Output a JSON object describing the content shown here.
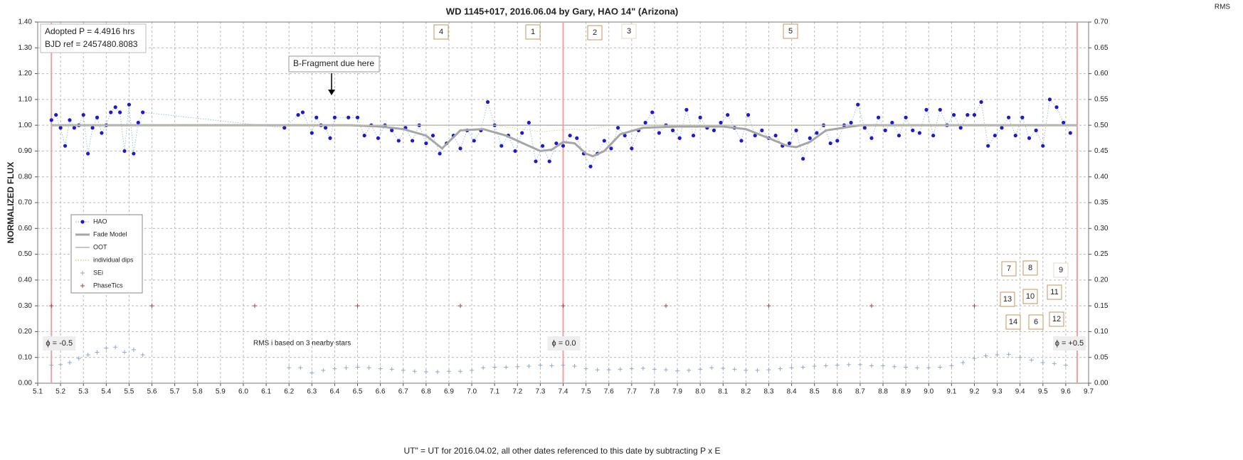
{
  "chart_data": {
    "type": "scatter",
    "title": "WD 1145+017,  2016.06.04  by Gary, HAO 14\" (Arizona)",
    "x_label": "UT\" = UT for 2016.04.02, all other dates referenced to this date by subtracting P x E",
    "y_label": "NORMALIZED FLUX",
    "y2_label": "RMS",
    "xlim": [
      5.1,
      9.7
    ],
    "ylim": [
      0,
      1.4
    ],
    "y2lim": [
      0,
      0.7
    ],
    "grid": true,
    "legend": "lower left",
    "xticks": [
      5.1,
      5.2,
      5.3,
      5.4,
      5.5,
      5.6,
      5.7,
      5.8,
      5.9,
      {
        "value": 6,
        "label": "6.0"
      },
      6.1,
      6.2,
      6.3,
      6.4,
      6.5,
      6.6,
      6.7,
      6.8,
      6.9,
      {
        "value": 7,
        "label": "7.0"
      },
      7.1,
      7.2,
      7.3,
      7.4,
      7.5,
      7.6,
      7.7,
      7.8,
      7.9,
      {
        "value": 8,
        "label": "8.0"
      },
      8.1,
      8.2,
      8.3,
      8.4,
      8.5,
      8.6,
      8.7,
      8.8,
      8.9,
      {
        "value": 9,
        "label": "9.0"
      },
      9.1,
      9.2,
      9.3,
      9.4,
      9.5,
      9.6,
      9.7
    ],
    "yticks": [
      {
        "value": 0,
        "label": "0.00"
      },
      {
        "value": 0.1,
        "label": "0.10"
      },
      {
        "value": 0.2,
        "label": "0.20"
      },
      {
        "value": 0.3,
        "label": "0.30"
      },
      {
        "value": 0.4,
        "label": "0.40"
      },
      {
        "value": 0.5,
        "label": "0.50"
      },
      {
        "value": 0.6,
        "label": "0.60"
      },
      {
        "value": 0.7,
        "label": "0.70"
      },
      {
        "value": 0.8,
        "label": "0.80"
      },
      {
        "value": 0.9,
        "label": "0.90"
      },
      {
        "value": 1,
        "label": "1.00"
      },
      {
        "value": 1.1,
        "label": "1.10"
      },
      {
        "value": 1.2,
        "label": "1.20"
      },
      {
        "value": 1.3,
        "label": "1.30"
      },
      {
        "value": 1.4,
        "label": "1.40"
      }
    ],
    "y2ticks": [
      {
        "value": 0,
        "label": "0.00"
      },
      {
        "value": 0.05,
        "label": "0.05"
      },
      {
        "value": 0.1,
        "label": "0.10"
      },
      {
        "value": 0.15,
        "label": "0.15"
      },
      {
        "value": 0.2,
        "label": "0.20"
      },
      {
        "value": 0.25,
        "label": "0.25"
      },
      {
        "value": 0.3,
        "label": "0.30"
      },
      {
        "value": 0.35,
        "label": "0.35"
      },
      {
        "value": 0.4,
        "label": "0.40"
      },
      {
        "value": 0.45,
        "label": "0.45"
      },
      {
        "value": 0.5,
        "label": "0.50"
      },
      {
        "value": 0.55,
        "label": "0.55"
      },
      {
        "value": 0.6,
        "label": "0.60"
      },
      {
        "value": 0.65,
        "label": "0.65"
      },
      {
        "value": 0.7,
        "label": "0.70"
      }
    ],
    "series": [
      {
        "name": "HAO",
        "color": "#1a1ad0",
        "line_color": "#9cc6d6",
        "marker": "dot",
        "line": "dotted",
        "x": [
          5.16,
          5.18,
          5.2,
          5.22,
          5.24,
          5.26,
          5.28,
          5.3,
          5.32,
          5.34,
          5.36,
          5.38,
          5.4,
          5.42,
          5.44,
          5.46,
          5.48,
          5.5,
          5.52,
          5.54,
          5.56,
          6.18,
          6.24,
          6.26,
          6.3,
          6.32,
          6.34,
          6.36,
          6.38,
          6.4,
          6.46,
          6.5,
          6.53,
          6.56,
          6.59,
          6.62,
          6.65,
          6.68,
          6.71,
          6.74,
          6.77,
          6.8,
          6.83,
          6.86,
          6.89,
          6.92,
          6.95,
          6.98,
          7.01,
          7.04,
          7.07,
          7.1,
          7.13,
          7.16,
          7.19,
          7.22,
          7.25,
          7.28,
          7.31,
          7.34,
          7.37,
          7.4,
          7.43,
          7.46,
          7.49,
          7.52,
          7.55,
          7.58,
          7.61,
          7.64,
          7.67,
          7.7,
          7.73,
          7.76,
          7.79,
          7.82,
          7.85,
          7.88,
          7.91,
          7.94,
          7.97,
          8.0,
          8.03,
          8.06,
          8.09,
          8.12,
          8.15,
          8.18,
          8.21,
          8.24,
          8.27,
          8.3,
          8.33,
          8.36,
          8.39,
          8.42,
          8.45,
          8.48,
          8.51,
          8.54,
          8.57,
          8.6,
          8.63,
          8.66,
          8.69,
          8.72,
          8.75,
          8.78,
          8.81,
          8.84,
          8.87,
          8.9,
          8.93,
          8.96,
          8.99,
          9.02,
          9.05,
          9.08,
          9.11,
          9.14,
          9.17,
          9.2,
          9.23,
          9.26,
          9.29,
          9.32,
          9.35,
          9.38,
          9.41,
          9.44,
          9.47,
          9.5,
          9.53,
          9.56,
          9.59,
          9.62
        ],
        "values": [
          1.02,
          1.04,
          0.99,
          0.92,
          1.02,
          0.99,
          1.0,
          1.04,
          0.89,
          0.99,
          1.03,
          0.97,
          1.0,
          1.05,
          1.07,
          1.05,
          0.9,
          1.08,
          0.89,
          1.01,
          1.05,
          0.99,
          1.04,
          1.05,
          0.97,
          1.03,
          1.0,
          0.99,
          0.95,
          1.03,
          1.03,
          1.03,
          0.96,
          1.0,
          0.95,
          1.0,
          0.98,
          0.94,
          0.99,
          0.94,
          1.0,
          0.93,
          0.96,
          0.89,
          0.93,
          0.96,
          0.91,
          0.98,
          0.94,
          0.98,
          1.09,
          1.0,
          0.92,
          0.96,
          0.9,
          0.97,
          1.01,
          0.86,
          0.92,
          0.86,
          0.93,
          0.92,
          0.96,
          0.95,
          0.89,
          0.84,
          0.89,
          0.94,
          0.91,
          0.99,
          0.96,
          0.91,
          0.98,
          1.01,
          1.05,
          0.97,
          1.0,
          0.98,
          0.95,
          1.06,
          0.96,
          1.03,
          0.99,
          0.98,
          1.01,
          1.04,
          0.99,
          0.94,
          1.04,
          0.96,
          0.98,
          0.95,
          0.96,
          0.92,
          0.93,
          0.98,
          0.87,
          0.95,
          0.97,
          1.0,
          0.93,
          0.94,
          1.0,
          1.01,
          1.08,
          0.99,
          0.95,
          1.03,
          0.98,
          1.01,
          0.96,
          1.03,
          0.98,
          0.97,
          1.06,
          0.96,
          1.06,
          1.0,
          1.04,
          0.99,
          1.04,
          1.04,
          1.09,
          0.92,
          0.96,
          0.99,
          1.03,
          0.96,
          1.03,
          0.95,
          0.98,
          0.92,
          1.1,
          1.07,
          1.01,
          0.97
        ]
      },
      {
        "name": "Fade Model",
        "color": "#a6a6a6",
        "marker": "none",
        "line": "thick",
        "x": [
          5.16,
          6.47,
          6.6,
          6.7,
          6.8,
          6.87,
          6.95,
          7.05,
          7.15,
          7.25,
          7.3,
          7.35,
          7.4,
          7.45,
          7.5,
          7.53,
          7.58,
          7.65,
          7.75,
          7.9,
          8.1,
          8.2,
          8.3,
          8.38,
          8.42,
          8.48,
          8.55,
          8.7,
          9.0,
          9.65
        ],
        "values": [
          1.0,
          1.0,
          0.995,
          0.985,
          0.96,
          0.91,
          0.98,
          0.985,
          0.96,
          0.92,
          0.9,
          0.905,
          0.935,
          0.93,
          0.89,
          0.88,
          0.9,
          0.965,
          0.99,
          0.995,
          0.995,
          0.985,
          0.95,
          0.92,
          0.915,
          0.935,
          0.98,
          1.0,
          1.0,
          1.0
        ]
      },
      {
        "name": "OOT",
        "color": "#b4b4b4",
        "marker": "none",
        "line": "solid",
        "x": [
          5.16,
          9.65
        ],
        "values": [
          1.0,
          1.0
        ]
      },
      {
        "name": "individual dips",
        "color": "#d4d48a",
        "marker": "none",
        "line": "dotted",
        "x": [
          5.16,
          7.1,
          7.3,
          7.45,
          7.5,
          7.6,
          9.65
        ],
        "values": [
          1.0,
          1.0,
          0.975,
          0.985,
          0.98,
          1.0,
          1.0
        ]
      },
      {
        "name": "SEi",
        "color": "#93aac4",
        "marker": "plus",
        "line": "none",
        "axis": "y2",
        "x": [
          5.16,
          5.2,
          5.24,
          5.28,
          5.32,
          5.36,
          5.4,
          5.44,
          5.48,
          5.52,
          5.56,
          6.2,
          6.25,
          6.3,
          6.35,
          6.4,
          6.45,
          6.5,
          6.55,
          6.6,
          6.65,
          6.7,
          6.75,
          6.8,
          6.85,
          6.9,
          6.95,
          7.0,
          7.05,
          7.1,
          7.15,
          7.2,
          7.25,
          7.3,
          7.35,
          7.4,
          7.45,
          7.5,
          7.55,
          7.6,
          7.65,
          7.7,
          7.75,
          7.8,
          7.85,
          7.9,
          7.95,
          8.0,
          8.05,
          8.1,
          8.15,
          8.2,
          8.25,
          8.3,
          8.35,
          8.4,
          8.45,
          8.5,
          8.55,
          8.6,
          8.65,
          8.7,
          8.75,
          8.8,
          8.85,
          8.9,
          8.95,
          9.0,
          9.05,
          9.1,
          9.15,
          9.2,
          9.25,
          9.3,
          9.35,
          9.4,
          9.45,
          9.5,
          9.55,
          9.6
        ],
        "values": [
          0.035,
          0.036,
          0.04,
          0.048,
          0.055,
          0.06,
          0.068,
          0.07,
          0.06,
          0.065,
          0.055,
          0.03,
          0.03,
          0.02,
          0.025,
          0.028,
          0.03,
          0.031,
          0.03,
          0.028,
          0.027,
          0.025,
          0.023,
          0.022,
          0.022,
          0.023,
          0.023,
          0.025,
          0.03,
          0.031,
          0.031,
          0.032,
          0.033,
          0.035,
          0.034,
          0.035,
          0.033,
          0.028,
          0.026,
          0.026,
          0.027,
          0.028,
          0.029,
          0.027,
          0.026,
          0.024,
          0.025,
          0.027,
          0.03,
          0.029,
          0.027,
          0.025,
          0.025,
          0.026,
          0.028,
          0.03,
          0.031,
          0.033,
          0.034,
          0.035,
          0.036,
          0.036,
          0.034,
          0.034,
          0.032,
          0.031,
          0.03,
          0.03,
          0.031,
          0.034,
          0.04,
          0.048,
          0.053,
          0.055,
          0.056,
          0.05,
          0.045,
          0.04,
          0.038,
          0.035
        ]
      },
      {
        "name": "PhaseTics",
        "color": "#a04848",
        "marker": "plus",
        "line": "none",
        "x": [
          5.16,
          5.6,
          6.05,
          6.5,
          6.95,
          7.4,
          7.85,
          8.3,
          8.75,
          9.2
        ],
        "values": [
          0.3,
          0.3,
          0.3,
          0.3,
          0.3,
          0.3,
          0.3,
          0.3,
          0.3,
          0.3
        ]
      }
    ],
    "phase_lines": [
      {
        "x": 5.16,
        "label": "ϕ = -0.5"
      },
      {
        "x": 7.4,
        "label": "ϕ = 0.0"
      },
      {
        "x": 9.65,
        "label": "ϕ = +0.5"
      }
    ],
    "info_box": [
      "Adopted P = 4.4916 hrs",
      "BJD ref = 2457480.8083"
    ],
    "callout": "B-Fragment due here",
    "note": "RMS i based on 3 nearby stars",
    "dip_labels": [
      "4",
      "1",
      "2",
      "3",
      "5",
      "7",
      "8",
      "9",
      "11",
      "10",
      "13",
      "14",
      "6",
      "12"
    ]
  }
}
